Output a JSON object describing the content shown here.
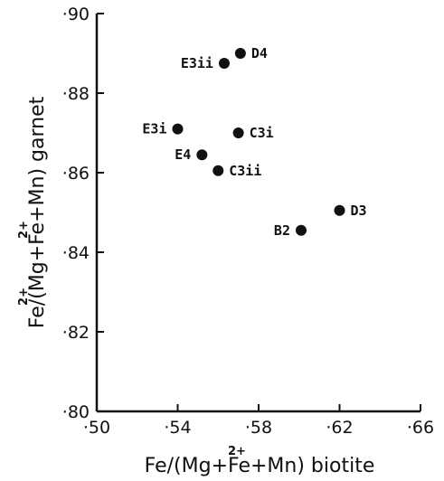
{
  "chart_data": {
    "type": "scatter",
    "xlim": [
      0.5,
      0.66
    ],
    "ylim": [
      0.8,
      0.9
    ],
    "x_ticks": [
      "·50",
      "·54",
      "·58",
      "·62",
      "·66"
    ],
    "x_tick_values": [
      0.5,
      0.54,
      0.58,
      0.62,
      0.66
    ],
    "y_ticks": [
      "·80",
      "·82",
      "·84",
      "·86",
      "·88",
      "·90"
    ],
    "y_tick_values": [
      0.8,
      0.82,
      0.84,
      0.86,
      0.88,
      0.9
    ],
    "xlabel": {
      "main": "Fe/(Mg+Fe+Mn) biotite",
      "superscript": "2+"
    },
    "ylabel": {
      "main": "Fe/(Mg+Fe+Mn) garnet",
      "superscripts": [
        "2+",
        "2+"
      ]
    },
    "points": [
      {
        "label": "D4",
        "x": 0.571,
        "y": 0.89,
        "label_side": "right"
      },
      {
        "label": "E3ii",
        "x": 0.563,
        "y": 0.8875,
        "label_side": "left"
      },
      {
        "label": "E3i",
        "x": 0.54,
        "y": 0.871,
        "label_side": "left"
      },
      {
        "label": "C3i",
        "x": 0.57,
        "y": 0.87,
        "label_side": "right"
      },
      {
        "label": "E4",
        "x": 0.552,
        "y": 0.8645,
        "label_side": "left"
      },
      {
        "label": "C3ii",
        "x": 0.56,
        "y": 0.8605,
        "label_side": "right"
      },
      {
        "label": "D3",
        "x": 0.62,
        "y": 0.8505,
        "label_side": "right"
      },
      {
        "label": "B2",
        "x": 0.601,
        "y": 0.8455,
        "label_side": "left"
      }
    ],
    "grid": false,
    "legend": "none"
  }
}
